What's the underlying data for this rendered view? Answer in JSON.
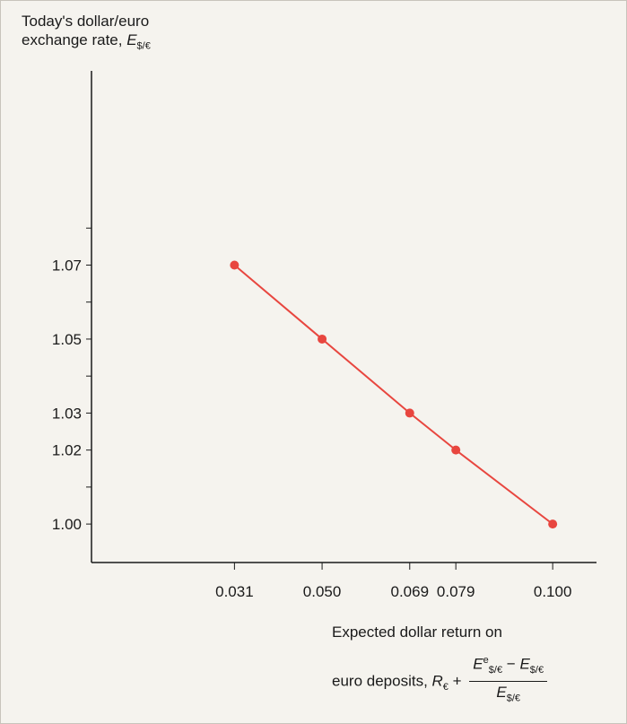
{
  "chart_data": {
    "type": "line",
    "title": "",
    "ylabel": {
      "line1": "Today's dollar/euro",
      "line2_prefix": "exchange rate, ",
      "symbol": "E",
      "subscript": "$/€"
    },
    "xlabel": {
      "line1": "Expected dollar return on",
      "line2_prefix": "euro deposits, ",
      "r_symbol": "R",
      "r_subscript": "€",
      "plus": " + ",
      "num_e": "E",
      "num_sup": "e",
      "num_sub": "$/€",
      "minus": " − ",
      "num_e2": "E",
      "num_sub2": "$/€",
      "den_e": "E",
      "den_sub": "$/€"
    },
    "x": [
      0.031,
      0.05,
      0.069,
      0.079,
      0.1
    ],
    "y": [
      1.07,
      1.05,
      1.03,
      1.02,
      1.0
    ],
    "xticks": [
      "0.031",
      "0.050",
      "0.069",
      "0.079",
      "0.100"
    ],
    "yticks": [
      {
        "value": 1.0,
        "label": "1.00"
      },
      {
        "value": 1.01,
        "label": ""
      },
      {
        "value": 1.02,
        "label": "1.02"
      },
      {
        "value": 1.03,
        "label": "1.03"
      },
      {
        "value": 1.04,
        "label": ""
      },
      {
        "value": 1.05,
        "label": "1.05"
      },
      {
        "value": 1.06,
        "label": ""
      },
      {
        "value": 1.07,
        "label": "1.07"
      },
      {
        "value": 1.08,
        "label": ""
      }
    ],
    "xlim": [
      0.0,
      0.1095
    ],
    "ylim": [
      0.9896,
      1.1225
    ],
    "grid": false,
    "line_color": "#e8463f",
    "marker_color": "#e8463f",
    "axis_color": "#1a1a1a"
  }
}
